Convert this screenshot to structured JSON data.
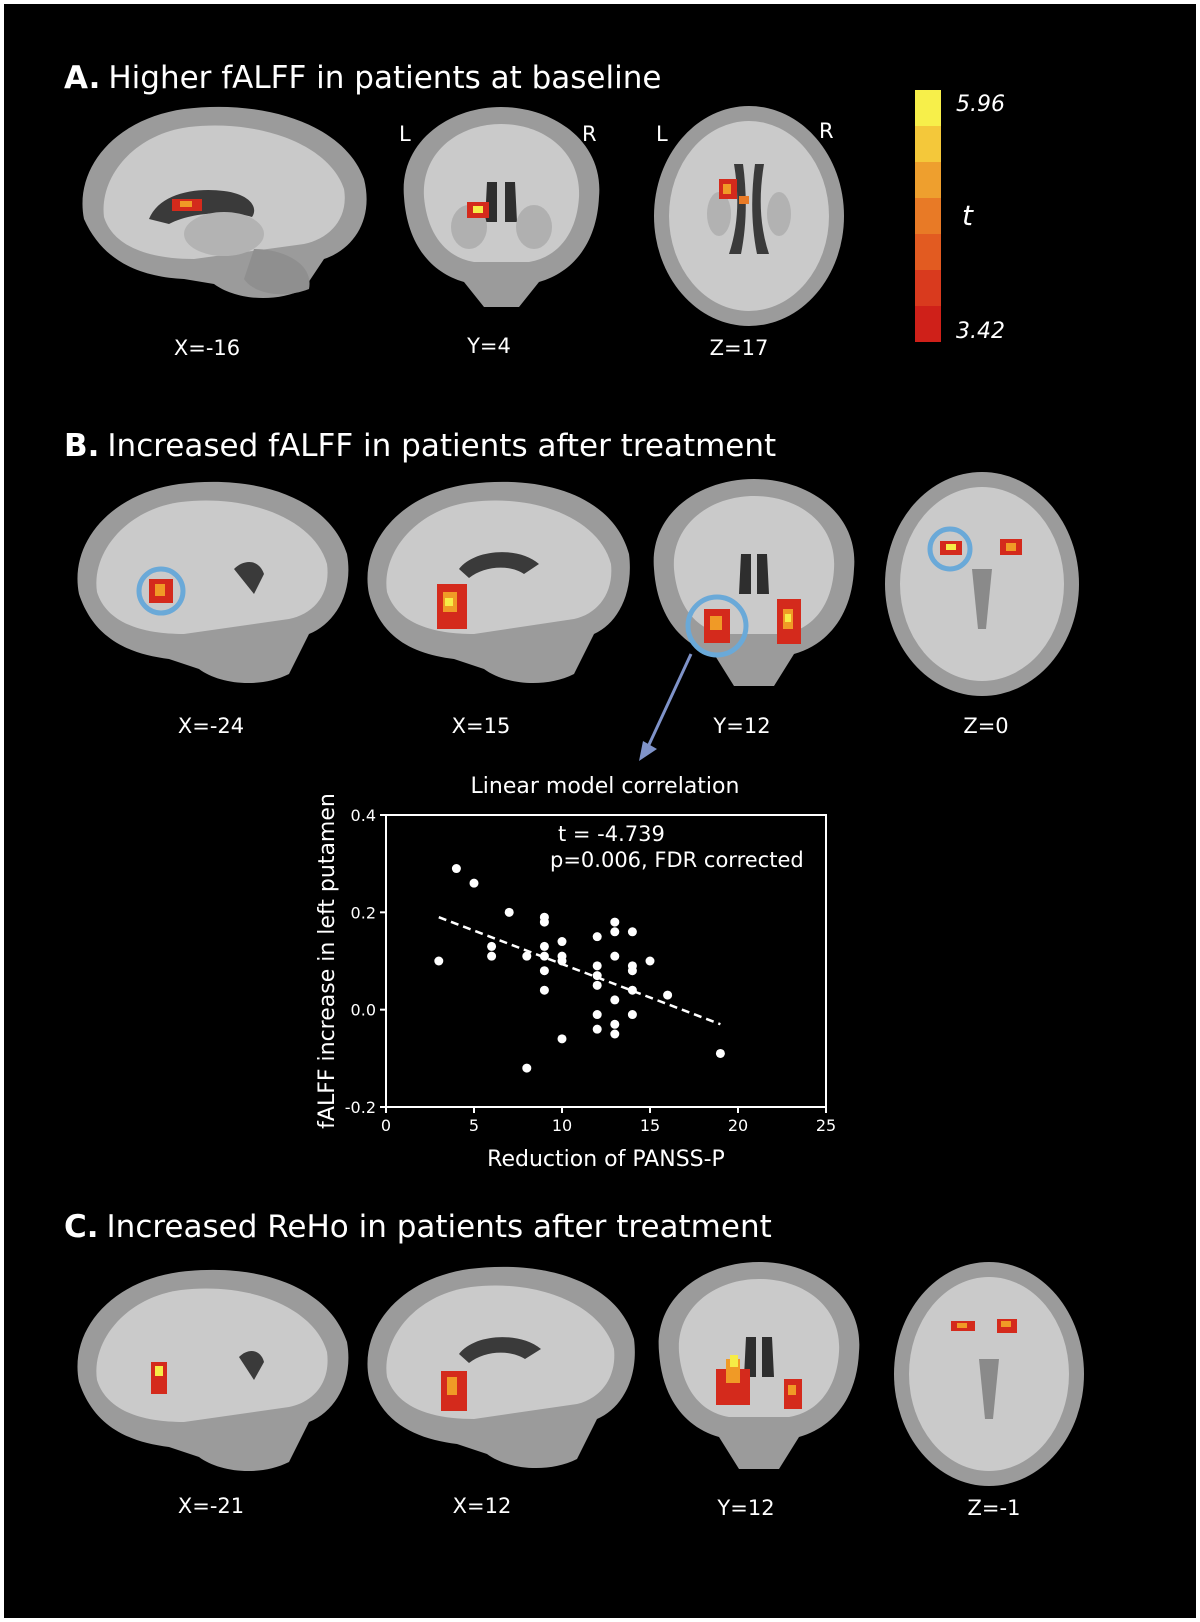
{
  "panels": {
    "A": {
      "letter": "A.",
      "title": "Higher fALFF in patients at baseline",
      "coords": [
        "X=-16",
        "Y=4",
        "Z=17"
      ],
      "left_label": "L",
      "right_label": "R"
    },
    "B": {
      "letter": "B.",
      "title": "Increased fALFF in patients after treatment",
      "coords": [
        "X=-24",
        "X=15",
        "Y=12",
        "Z=0"
      ]
    },
    "C": {
      "letter": "C.",
      "title": "Increased ReHo in patients after treatment",
      "coords": [
        "X=-21",
        "X=12",
        "Y=12",
        "Z=-1"
      ]
    }
  },
  "colorbar": {
    "max_label": "5.96",
    "min_label": "3.42",
    "symbol": "t",
    "colors": [
      "#f7ef4a",
      "#f4c83a",
      "#ee9f2e",
      "#e87a26",
      "#e25b21",
      "#d93a1e",
      "#cf2019"
    ]
  },
  "colors": {
    "background": "#000000",
    "activation_hot": "#d42a1c",
    "activation_warm": "#f09a26",
    "activation_peak": "#f6ec46",
    "roi_circle": "#6aa9d8",
    "arrow": "#7f93c9"
  },
  "chart_data": {
    "type": "scatter",
    "title": "Linear model correlation",
    "xlabel": "Reduction of PANSS-P",
    "ylabel": "fALFF increase in left putamen",
    "xlim": [
      0,
      25
    ],
    "ylim": [
      -0.2,
      0.4
    ],
    "x_ticks": [
      0,
      5,
      10,
      15,
      20,
      25
    ],
    "y_ticks": [
      -0.2,
      0.0,
      0.2,
      0.4
    ],
    "y_tick_labels": [
      "-0.2",
      "0.0",
      "0.2",
      "0.4"
    ],
    "annotation_line1": "t = -4.739",
    "annotation_line2": "p=0.006, FDR corrected",
    "trendline": {
      "x": [
        3,
        19
      ],
      "y": [
        0.19,
        -0.03
      ],
      "style": "dashed"
    },
    "points": [
      [
        3,
        0.1
      ],
      [
        4,
        0.29
      ],
      [
        5,
        0.26
      ],
      [
        6,
        0.13
      ],
      [
        6,
        0.11
      ],
      [
        7,
        0.2
      ],
      [
        8,
        0.11
      ],
      [
        8,
        -0.12
      ],
      [
        9,
        0.19
      ],
      [
        9,
        0.18
      ],
      [
        9,
        0.13
      ],
      [
        9,
        0.11
      ],
      [
        9,
        0.08
      ],
      [
        9,
        0.04
      ],
      [
        10,
        0.14
      ],
      [
        10,
        0.11
      ],
      [
        10,
        0.1
      ],
      [
        10,
        -0.06
      ],
      [
        12,
        0.15
      ],
      [
        12,
        0.09
      ],
      [
        12,
        0.07
      ],
      [
        12,
        0.05
      ],
      [
        12,
        -0.01
      ],
      [
        12,
        -0.04
      ],
      [
        13,
        0.18
      ],
      [
        13,
        0.16
      ],
      [
        13,
        0.11
      ],
      [
        13,
        0.02
      ],
      [
        13,
        -0.03
      ],
      [
        13,
        -0.05
      ],
      [
        14,
        0.16
      ],
      [
        14,
        0.09
      ],
      [
        14,
        0.08
      ],
      [
        14,
        0.04
      ],
      [
        14,
        -0.01
      ],
      [
        15,
        0.1
      ],
      [
        16,
        0.03
      ],
      [
        19,
        -0.09
      ]
    ]
  }
}
